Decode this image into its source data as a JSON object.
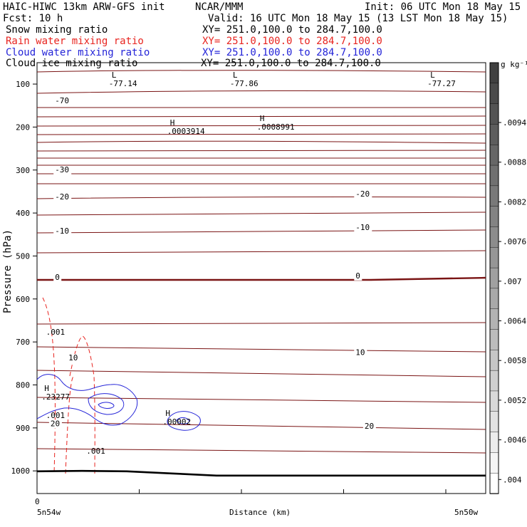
{
  "header": {
    "model": "HAIC-HIWC 13km ARW-GFS init",
    "org": "NCAR/MMM",
    "init": "Init: 06 UTC Mon 18 May 15",
    "fcst": "Fcst:   10 h",
    "valid": "Valid: 16 UTC Mon 18 May 15 (13 LST Mon 18 May 15)",
    "fields": [
      {
        "label": "Snow mixing ratio",
        "xy": "XY= 251.0,100.0 to 284.7,100.0",
        "color": "#000000"
      },
      {
        "label": "Rain water mixing ratio",
        "xy": "XY= 251.0,100.0 to 284.7,100.0",
        "color": "#e8241f"
      },
      {
        "label": "Cloud water mixing ratio",
        "xy": "XY= 251.0,100.0 to 284.7,100.0",
        "color": "#2424d8"
      },
      {
        "label": "Cloud ice mixing ratio",
        "xy": "XY= 251.0,100.0 to 284.7,100.0",
        "color": "#000000"
      }
    ]
  },
  "colorbar": {
    "unit": "g kg⁻¹",
    "ticks": [
      ".0094",
      ".0088",
      ".0082",
      ".0076",
      ".007",
      ".0064",
      ".0058",
      ".0052",
      ".0046",
      ".004"
    ]
  },
  "chart_data": {
    "type": "contour",
    "ylabel": "Pressure (hPa)",
    "xlabel": "Distance (km)",
    "y_ticks": [
      "100",
      "200",
      "300",
      "400",
      "500",
      "600",
      "700",
      "800",
      "900",
      "1000"
    ],
    "x_ticks": [
      "0"
    ],
    "x_endpoints": {
      "left": "5n54w",
      "right": "5n50w"
    },
    "temperature_contour_color": "#7a1414",
    "temperature_labels": [
      {
        "text": "-70",
        "p": 145,
        "x": 0.04
      },
      {
        "text": "-30",
        "p": 305,
        "x": 0.04
      },
      {
        "text": "-20",
        "p": 368,
        "x": 0.04
      },
      {
        "text": "-10",
        "p": 448,
        "x": 0.04
      },
      {
        "text": "-20",
        "p": 362,
        "x": 0.71
      },
      {
        "text": "-10",
        "p": 440,
        "x": 0.71
      },
      {
        "text": "0",
        "p": 556,
        "x": 0.04
      },
      {
        "text": "0",
        "p": 552,
        "x": 0.71
      },
      {
        "text": "10",
        "p": 743,
        "x": 0.07
      },
      {
        "text": "10",
        "p": 730,
        "x": 0.71
      },
      {
        "text": "20",
        "p": 896,
        "x": 0.03
      },
      {
        "text": "20",
        "p": 902,
        "x": 0.73
      }
    ],
    "extrema": [
      {
        "kind": "L",
        "value": "-77.14",
        "p": 105,
        "x": 0.16,
        "color": "#7a1414"
      },
      {
        "kind": "L",
        "value": "-77.86",
        "p": 105,
        "x": 0.43,
        "color": "#7a1414"
      },
      {
        "kind": "L",
        "value": "-77.27",
        "p": 105,
        "x": 0.87,
        "color": "#7a1414"
      },
      {
        "kind": "H",
        "value": ".0003914",
        "p": 216,
        "x": 0.29,
        "color": "#000000"
      },
      {
        "kind": "H",
        "value": ".0008991",
        "p": 206,
        "x": 0.49,
        "color": "#000000"
      },
      {
        "kind": "H",
        "value": ".23277",
        "p": 834,
        "x": 0.01,
        "color": "#2424d8"
      },
      {
        "kind": "H",
        "value": ".00002",
        "p": 892,
        "x": 0.28,
        "color": "#e8241f"
      }
    ],
    "contour_labels": [
      {
        "text": ".001",
        "p": 683,
        "x": 0.02,
        "color": "#e8241f"
      },
      {
        "text": ".001",
        "p": 877,
        "x": 0.02,
        "color": "#2424d8"
      },
      {
        "text": ".001",
        "p": 960,
        "x": 0.11,
        "color": "#e8241f"
      }
    ],
    "surface_pressure": [
      [
        0,
        1001
      ],
      [
        0.1,
        1000
      ],
      [
        0.2,
        1001
      ],
      [
        0.3,
        1006
      ],
      [
        0.4,
        1011
      ],
      [
        0.6,
        1011
      ],
      [
        0.8,
        1011
      ],
      [
        1,
        1011
      ]
    ]
  }
}
